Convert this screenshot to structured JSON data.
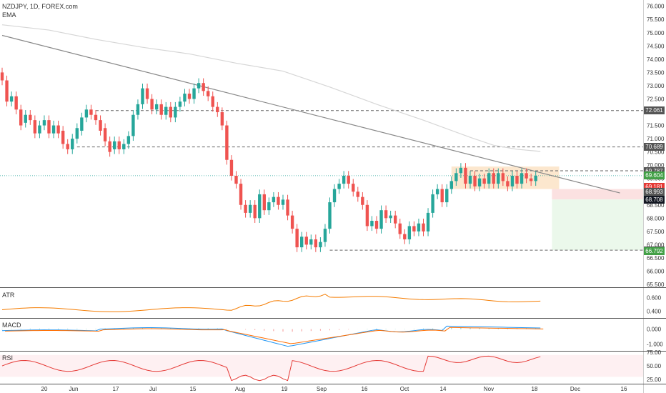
{
  "header": {
    "symbol_line": "NZDJPY, 1D, FOREX.com",
    "indicator": "EMA"
  },
  "colors": {
    "up": "#26a69a",
    "down": "#ef5350",
    "ema": "#d6d6d6",
    "trendline": "#888888",
    "atr": "#f57c00",
    "macd": "#2196f3",
    "signal": "#ff6d00",
    "rsi": "#e53935",
    "zone_orange": "#fbe3c6",
    "zone_red": "#fadcdc",
    "zone_green": "#e8f7e8",
    "tag_dark": "#555555",
    "tag_black": "#131722",
    "tag_red": "#e53935",
    "tag_green": "#43a047"
  },
  "panes": {
    "atr": {
      "label": "ATR",
      "ticks": [
        "0.600",
        "0.400"
      ]
    },
    "macd": {
      "label": "MACD",
      "ticks": [
        "0.000",
        "-1.000"
      ]
    },
    "rsi": {
      "label": "RSI",
      "ticks": [
        "75.00",
        "50.00",
        "25.00"
      ]
    }
  },
  "price_tags": [
    {
      "value": "72.061",
      "y": 72.061,
      "style": "dark"
    },
    {
      "value": "70.689",
      "y": 70.689,
      "style": "dark"
    },
    {
      "value": "69.787",
      "y": 69.787,
      "style": "dark"
    },
    {
      "value": "69.604",
      "y": 69.604,
      "style": "green"
    },
    {
      "value": "69.181",
      "y": 69.181,
      "style": "red"
    },
    {
      "value": "68.993",
      "y": 68.993,
      "style": "dark"
    },
    {
      "value": "68.708",
      "y": 68.708,
      "style": "black"
    },
    {
      "value": "66.790",
      "y": 66.79,
      "style": "dark"
    },
    {
      "value": "66.792",
      "y": 66.75,
      "style": "green"
    }
  ],
  "chart_data": {
    "type": "candlestick",
    "symbol": "NZDJPY",
    "ylim": [
      65.5,
      76.1
    ],
    "y_ticks": [
      "76.000",
      "75.500",
      "75.000",
      "74.500",
      "74.000",
      "73.500",
      "73.000",
      "72.500",
      "72.000",
      "71.500",
      "71.000",
      "70.500",
      "70.000",
      "69.500",
      "69.000",
      "68.500",
      "68.000",
      "67.500",
      "67.000",
      "66.500",
      "66.000",
      "65.500"
    ],
    "x_ticks": [
      "20",
      "Jun",
      "17",
      "Jul",
      "15",
      "Aug",
      "19",
      "Sep",
      "16",
      "Oct",
      "14",
      "Nov",
      "18",
      "Dec",
      "16"
    ],
    "horizontal_levels": [
      72.061,
      70.689,
      69.787,
      66.79
    ],
    "trendline": [
      [
        0,
        74.9
      ],
      [
        132,
        68.95
      ]
    ],
    "zones": [
      {
        "name": "entry",
        "from": 69.95,
        "to": 69.1
      },
      {
        "name": "stop",
        "from": 69.1,
        "to": 68.708
      },
      {
        "name": "target",
        "from": 68.708,
        "to": 66.79
      }
    ],
    "ema": [
      [
        0,
        75.3
      ],
      [
        10,
        75.1
      ],
      [
        20,
        74.75
      ],
      [
        30,
        74.45
      ],
      [
        40,
        74.2
      ],
      [
        50,
        73.85
      ],
      [
        60,
        73.55
      ],
      [
        70,
        72.95
      ],
      [
        80,
        72.3
      ],
      [
        90,
        71.7
      ],
      [
        100,
        71.05
      ],
      [
        105,
        70.75
      ],
      [
        110,
        70.6
      ],
      [
        115,
        70.52
      ]
    ],
    "candles": [
      [
        73.5,
        73.2
      ],
      [
        73.2,
        72.4
      ],
      [
        72.4,
        72.6
      ],
      [
        72.6,
        72.1
      ],
      [
        72.1,
        71.5
      ],
      [
        71.6,
        71.9
      ],
      [
        71.9,
        71.7
      ],
      [
        71.7,
        71.2
      ],
      [
        71.2,
        71.5
      ],
      [
        71.5,
        71.7
      ],
      [
        71.7,
        71.2
      ],
      [
        71.2,
        71.5
      ],
      [
        71.5,
        71.2
      ],
      [
        71.3,
        70.8
      ],
      [
        70.8,
        70.6
      ],
      [
        70.6,
        71.0
      ],
      [
        71.0,
        71.4
      ],
      [
        71.3,
        71.8
      ],
      [
        71.8,
        72.1
      ],
      [
        72.1,
        71.9
      ],
      [
        71.9,
        71.7
      ],
      [
        71.7,
        71.3
      ],
      [
        71.4,
        70.9
      ],
      [
        70.9,
        70.5
      ],
      [
        70.6,
        70.9
      ],
      [
        70.9,
        70.6
      ],
      [
        70.6,
        70.8
      ],
      [
        70.8,
        71.1
      ],
      [
        71.1,
        71.9
      ],
      [
        71.9,
        72.3
      ],
      [
        72.3,
        72.9
      ],
      [
        72.9,
        72.5
      ],
      [
        72.5,
        72.1
      ],
      [
        72.1,
        72.3
      ],
      [
        72.3,
        71.9
      ],
      [
        71.9,
        72.2
      ],
      [
        72.2,
        71.8
      ],
      [
        71.8,
        72.2
      ],
      [
        72.2,
        72.4
      ],
      [
        72.4,
        72.7
      ],
      [
        72.7,
        72.5
      ],
      [
        72.5,
        72.9
      ],
      [
        72.9,
        73.1
      ],
      [
        73.1,
        72.8
      ],
      [
        72.8,
        72.6
      ],
      [
        72.6,
        72.2
      ],
      [
        72.2,
        72.0
      ],
      [
        72.0,
        71.5
      ],
      [
        71.5,
        70.2
      ],
      [
        70.2,
        69.6
      ],
      [
        69.6,
        69.3
      ],
      [
        69.3,
        68.5
      ],
      [
        68.5,
        68.2
      ],
      [
        68.2,
        68.5
      ],
      [
        68.5,
        68.0
      ],
      [
        68.0,
        68.9
      ],
      [
        68.9,
        68.3
      ],
      [
        68.3,
        68.6
      ],
      [
        68.6,
        68.8
      ],
      [
        68.8,
        68.5
      ],
      [
        68.5,
        68.7
      ],
      [
        68.7,
        68.1
      ],
      [
        68.1,
        67.6
      ],
      [
        67.6,
        66.9
      ],
      [
        66.9,
        67.3
      ],
      [
        67.3,
        67.0
      ],
      [
        67.0,
        67.2
      ],
      [
        67.2,
        66.9
      ],
      [
        66.9,
        67.1
      ],
      [
        67.1,
        67.6
      ],
      [
        67.6,
        68.6
      ],
      [
        68.6,
        69.1
      ],
      [
        69.1,
        69.3
      ],
      [
        69.3,
        69.6
      ],
      [
        69.6,
        69.3
      ],
      [
        69.3,
        69.0
      ],
      [
        69.0,
        68.8
      ],
      [
        68.8,
        68.5
      ],
      [
        68.5,
        67.7
      ],
      [
        67.7,
        67.9
      ],
      [
        67.9,
        67.6
      ],
      [
        67.6,
        68.3
      ],
      [
        68.3,
        68.0
      ],
      [
        68.0,
        68.1
      ],
      [
        68.1,
        67.8
      ],
      [
        67.8,
        67.4
      ],
      [
        67.4,
        67.2
      ],
      [
        67.2,
        67.7
      ],
      [
        67.7,
        67.5
      ],
      [
        67.5,
        67.8
      ],
      [
        67.8,
        67.5
      ],
      [
        67.5,
        68.2
      ],
      [
        68.2,
        68.9
      ],
      [
        68.9,
        69.1
      ],
      [
        69.1,
        68.6
      ],
      [
        68.6,
        69.1
      ],
      [
        69.1,
        69.4
      ],
      [
        69.4,
        69.7
      ],
      [
        69.7,
        69.9
      ],
      [
        69.9,
        69.3
      ],
      [
        69.3,
        69.6
      ],
      [
        69.6,
        69.2
      ],
      [
        69.2,
        69.5
      ],
      [
        69.5,
        69.3
      ],
      [
        69.3,
        69.7
      ],
      [
        69.7,
        69.3
      ],
      [
        69.3,
        69.7
      ],
      [
        69.7,
        69.4
      ],
      [
        69.4,
        69.2
      ],
      [
        69.2,
        69.6
      ],
      [
        69.6,
        69.3
      ],
      [
        69.3,
        69.7
      ],
      [
        69.7,
        69.5
      ],
      [
        69.5,
        69.4
      ],
      [
        69.4,
        69.6
      ]
    ]
  }
}
